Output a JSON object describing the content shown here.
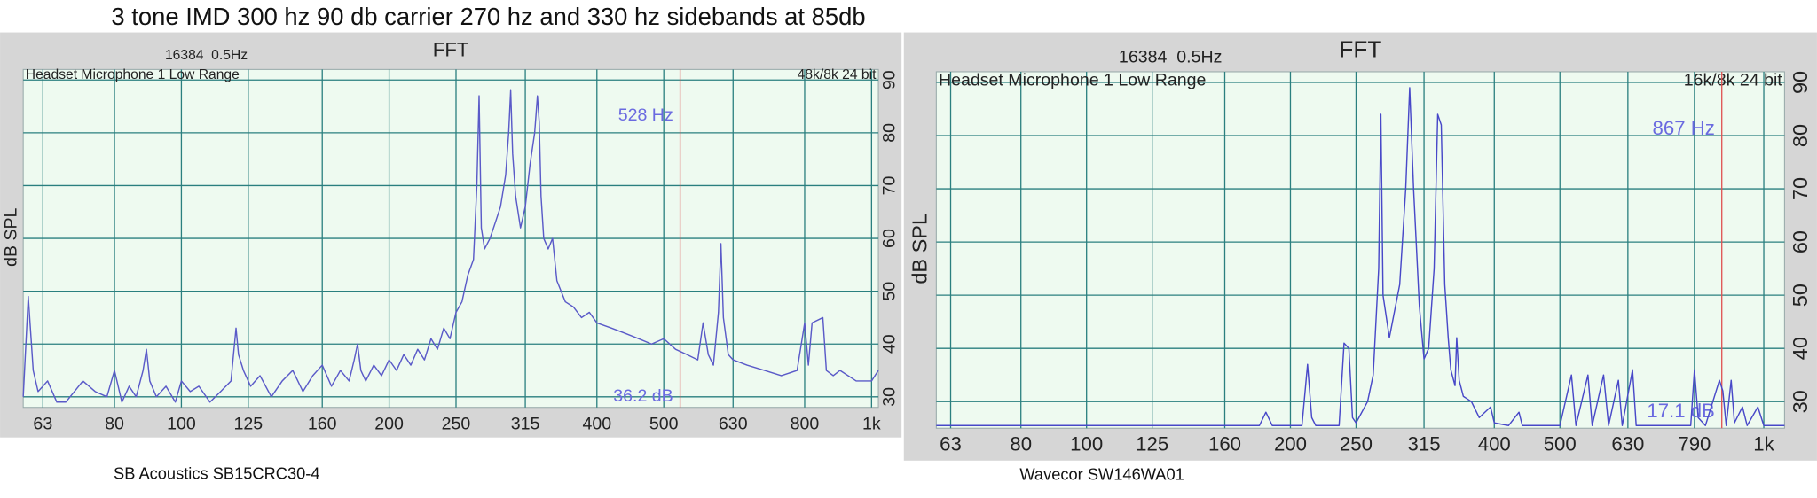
{
  "title": "3 tone IMD 300 hz 90 db carrier 270 hz and 330 hz sidebands at 85db",
  "chart_data": [
    {
      "type": "line",
      "title": "FFT",
      "resolution": "16384  0.5Hz",
      "device": "Headset Microphone 1 Low Range",
      "format": "48k/8k 24 bit",
      "cursor": {
        "value": 528,
        "label": "528 Hz"
      },
      "readout": "36.2 dB",
      "ylabel": "dB SPL",
      "caption": "SB Acoustics SB15CRC30-4",
      "log_x": true,
      "grid": true,
      "xlim": [
        59,
        1023
      ],
      "ylim": [
        28,
        92
      ],
      "xticks": [
        63,
        80,
        100,
        125,
        160,
        200,
        250,
        315,
        400,
        500,
        630,
        800,
        {
          "value": 1000,
          "label": "1k"
        }
      ],
      "yticks": [
        30,
        40,
        50,
        60,
        70,
        80,
        90
      ],
      "series": [
        {
          "color": "#5a5ac8",
          "x": [
            59,
            60,
            61,
            62,
            64,
            66,
            68,
            70,
            72,
            75,
            78,
            80,
            82,
            84,
            86,
            88,
            89,
            90,
            92,
            95,
            98,
            100,
            103,
            106,
            110,
            114,
            118,
            120,
            121,
            123,
            126,
            130,
            135,
            140,
            145,
            150,
            155,
            160,
            165,
            170,
            175,
            178,
            180,
            182,
            185,
            190,
            195,
            200,
            205,
            210,
            215,
            220,
            225,
            230,
            235,
            240,
            245,
            250,
            255,
            260,
            265,
            268,
            270,
            272,
            275,
            280,
            285,
            290,
            295,
            298,
            300,
            302,
            305,
            310,
            315,
            320,
            325,
            328,
            330,
            332,
            335,
            340,
            345,
            350,
            360,
            370,
            380,
            390,
            400,
            420,
            440,
            460,
            480,
            500,
            520,
            540,
            560,
            570,
            580,
            590,
            600,
            605,
            610,
            620,
            630,
            660,
            700,
            740,
            780,
            800,
            810,
            820,
            850,
            860,
            880,
            900,
            950,
            1000,
            1023
          ],
          "values": [
            30,
            49,
            35,
            31,
            33,
            29,
            29,
            31,
            33,
            31,
            30,
            35,
            29,
            32,
            30,
            35,
            39,
            33,
            30,
            32,
            29,
            33,
            31,
            32,
            29,
            31,
            33,
            43,
            38,
            35,
            32,
            34,
            30,
            33,
            35,
            31,
            34,
            36,
            32,
            35,
            33,
            37,
            40,
            35,
            33,
            36,
            34,
            37,
            35,
            38,
            36,
            39,
            37,
            41,
            39,
            43,
            41,
            46,
            48,
            53,
            56,
            70,
            87,
            62,
            58,
            60,
            63,
            66,
            72,
            80,
            88,
            76,
            68,
            62,
            66,
            74,
            80,
            87,
            82,
            68,
            60,
            58,
            60,
            52,
            48,
            47,
            45,
            46,
            44,
            43,
            42,
            41,
            40,
            41,
            39,
            38,
            37,
            44,
            38,
            36,
            46,
            59,
            45,
            38,
            37,
            36,
            35,
            34,
            35,
            44,
            36,
            44,
            45,
            35,
            34,
            35,
            33,
            33,
            35
          ]
        }
      ]
    },
    {
      "type": "line",
      "title": "FFT",
      "resolution": "16384  0.5Hz",
      "device": "Headset Microphone 1 Low Range",
      "format": "16k/8k 24 bit",
      "cursor": {
        "value": 867,
        "label": "867 Hz"
      },
      "readout": "17.1 dB",
      "ylabel": "dB SPL",
      "caption": "Wavecor SW146WA01",
      "log_x": true,
      "grid": true,
      "xlim": [
        60,
        1073
      ],
      "ylim": [
        25,
        92
      ],
      "xticks": [
        63,
        80,
        100,
        125,
        160,
        200,
        250,
        315,
        400,
        500,
        630,
        790,
        {
          "value": 1000,
          "label": "1k"
        }
      ],
      "yticks": [
        30,
        40,
        50,
        60,
        70,
        80,
        90
      ],
      "series": [
        {
          "color": "#4848c8",
          "x": [
            60,
            180,
            184,
            188,
            208,
            212,
            215,
            218,
            236,
            240,
            244,
            247,
            250,
            260,
            265,
            270,
            272,
            274,
            280,
            290,
            296,
            300,
            304,
            310,
            315,
            320,
            326,
            330,
            334,
            338,
            342,
            345,
            350,
            352,
            355,
            360,
            370,
            380,
            395,
            400,
            420,
            435,
            440,
            500,
            520,
            528,
            550,
            558,
            580,
            590,
            610,
            618,
            640,
            648,
            780,
            790,
            800,
            820,
            860,
            870,
            880,
            895,
            905,
            930,
            945,
            980,
            1000,
            1073
          ],
          "values": [
            25.5,
            25.5,
            28,
            25.5,
            25.5,
            37,
            27,
            25.5,
            25.5,
            41,
            40,
            27,
            26,
            30,
            35,
            55,
            84,
            50,
            42,
            52,
            70,
            89,
            70,
            48,
            38,
            40,
            55,
            84,
            82,
            52,
            42,
            36,
            33,
            42,
            34,
            31,
            30,
            27,
            29,
            26,
            25.5,
            28,
            25.5,
            25.5,
            35,
            25.5,
            35,
            25.5,
            35,
            25.5,
            34,
            25.5,
            36,
            25.5,
            25.5,
            36,
            27,
            25.5,
            34,
            32,
            25.5,
            34,
            26,
            29,
            25.5,
            29,
            25.5,
            25.5
          ]
        }
      ]
    }
  ]
}
